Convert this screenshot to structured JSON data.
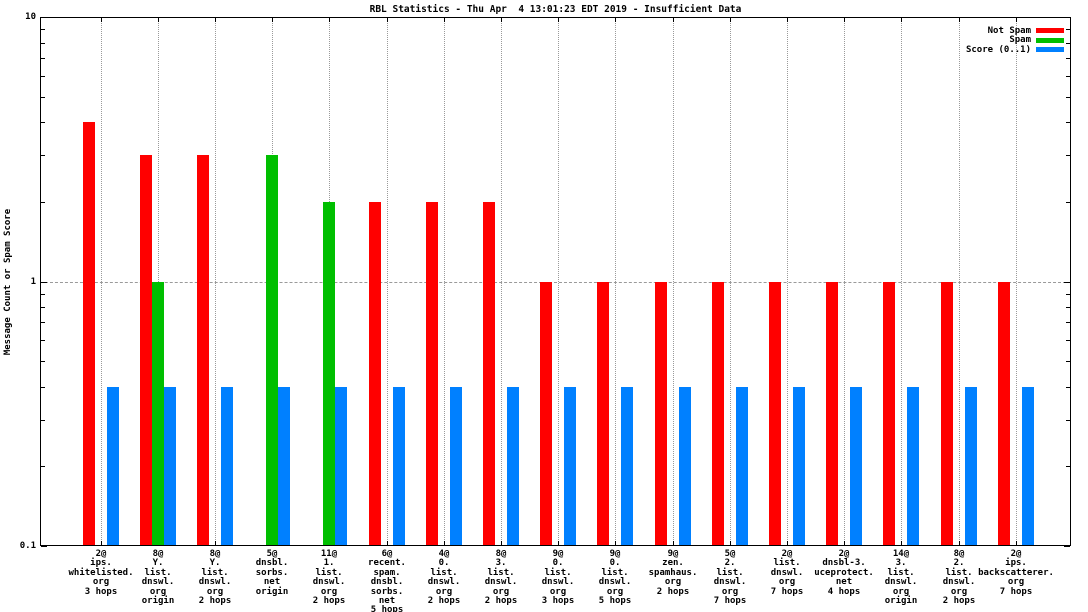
{
  "title": "RBL Statistics - Thu Apr  4 13:01:23 EDT 2019 - Insufficient Data",
  "ylabel": "Message Count or Spam Score",
  "legend": [
    {
      "label": "Not Spam",
      "color": "#ff0000"
    },
    {
      "label": "Spam",
      "color": "#00bf00"
    },
    {
      "label": "Score (0..1)",
      "color": "#0080ff"
    }
  ],
  "colors": {
    "not_spam": "#ff0000",
    "spam": "#00bf00",
    "score": "#0080ff",
    "grid": "#9a9a9a",
    "background": "#ffffff"
  },
  "y_axis": {
    "tick_labels": [
      "10",
      "1",
      "0.1"
    ],
    "tick_values": [
      10,
      1,
      0.1
    ]
  },
  "chart_data": {
    "type": "bar",
    "scale": "log",
    "title": "RBL Statistics - Thu Apr  4 13:01:23 EDT 2019 - Insufficient Data",
    "xlabel": "",
    "ylabel": "Message Count or Spam Score",
    "ylim": [
      0.1,
      10
    ],
    "grid": "dashed vertical at each category, dashed horizontal at y=1",
    "legend_position": "top-right inside plot",
    "categories": [
      [
        "2@",
        "ips.",
        "whitelisted.",
        "org",
        "3 hops"
      ],
      [
        "8@",
        "Y.",
        "list.",
        "dnswl.",
        "org",
        "origin"
      ],
      [
        "8@",
        "Y.",
        "list.",
        "dnswl.",
        "org",
        "2 hops"
      ],
      [
        "5@",
        "dnsbl.",
        "sorbs.",
        "net",
        "origin"
      ],
      [
        "11@",
        "1.",
        "list.",
        "dnswl.",
        "org",
        "2 hops"
      ],
      [
        "6@",
        "recent.",
        "spam.",
        "dnsbl.",
        "sorbs.",
        "net",
        "5 hops"
      ],
      [
        "4@",
        "0.",
        "list.",
        "dnswl.",
        "org",
        "2 hops"
      ],
      [
        "8@",
        "3.",
        "list.",
        "dnswl.",
        "org",
        "2 hops"
      ],
      [
        "9@",
        "0.",
        "list.",
        "dnswl.",
        "org",
        "3 hops"
      ],
      [
        "9@",
        "0.",
        "list.",
        "dnswl.",
        "org",
        "5 hops"
      ],
      [
        "9@",
        "zen.",
        "spamhaus.",
        "org",
        "2 hops"
      ],
      [
        "5@",
        "2.",
        "list.",
        "dnswl.",
        "org",
        "7 hops"
      ],
      [
        "2@",
        "list.",
        "dnswl.",
        "org",
        "7 hops"
      ],
      [
        "2@",
        "dnsbl-3.",
        "uceprotect.",
        "net",
        "4 hops"
      ],
      [
        "14@",
        "3.",
        "list.",
        "dnswl.",
        "org",
        "origin"
      ],
      [
        "8@",
        "2.",
        "list.",
        "dnswl.",
        "org",
        "2 hops"
      ],
      [
        "2@",
        "ips.",
        "backscatterer.",
        "org",
        "7 hops"
      ]
    ],
    "series": [
      {
        "name": "Not Spam",
        "color": "#ff0000",
        "values": [
          4,
          3,
          3,
          null,
          null,
          2,
          2,
          2,
          1,
          1,
          1,
          1,
          1,
          1,
          1,
          1,
          1
        ]
      },
      {
        "name": "Spam",
        "color": "#00bf00",
        "values": [
          null,
          1,
          null,
          3,
          2,
          null,
          null,
          null,
          null,
          null,
          null,
          null,
          null,
          null,
          null,
          null,
          null
        ]
      },
      {
        "name": "Score (0..1)",
        "color": "#0080ff",
        "values": [
          0.4,
          0.4,
          0.4,
          0.4,
          0.4,
          0.4,
          0.4,
          0.4,
          0.4,
          0.4,
          0.4,
          0.4,
          0.4,
          0.4,
          0.4,
          0.4,
          0.4
        ]
      }
    ]
  }
}
